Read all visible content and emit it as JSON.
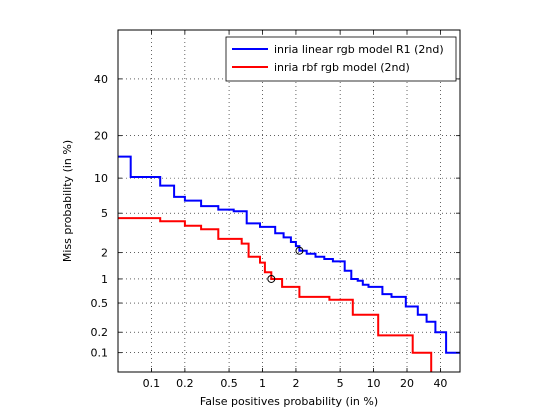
{
  "chart_data": {
    "type": "line",
    "xlabel": "False positives probability (in %)",
    "ylabel": "Miss probability (in %)",
    "x_scale": "log",
    "y_scale": "probit",
    "xlim": [
      0.05,
      60
    ],
    "ylim": [
      0.05,
      60
    ],
    "grid": true,
    "legend_position": "top-right",
    "x_ticks": [
      {
        "value": 0.1,
        "label": "0.1"
      },
      {
        "value": 0.2,
        "label": "0.2"
      },
      {
        "value": 0.5,
        "label": "0.5"
      },
      {
        "value": 1,
        "label": "1"
      },
      {
        "value": 2,
        "label": "2"
      },
      {
        "value": 5,
        "label": "5"
      },
      {
        "value": 10,
        "label": "10"
      },
      {
        "value": 20,
        "label": "20"
      },
      {
        "value": 40,
        "label": "40"
      }
    ],
    "y_ticks": [
      {
        "value": 0.1,
        "label": "0.1"
      },
      {
        "value": 0.2,
        "label": "0.2"
      },
      {
        "value": 0.5,
        "label": "0.5"
      },
      {
        "value": 1,
        "label": "1"
      },
      {
        "value": 2,
        "label": "2"
      },
      {
        "value": 5,
        "label": "5"
      },
      {
        "value": 10,
        "label": "10"
      },
      {
        "value": 20,
        "label": "20"
      },
      {
        "value": 40,
        "label": "40"
      }
    ],
    "series": [
      {
        "name": "inria linear rgb model R1 (2nd)",
        "color": "#0000ff",
        "marker_point": [
          2.15,
          2.1
        ],
        "points": [
          [
            0.05,
            14.5
          ],
          [
            0.065,
            14.5
          ],
          [
            0.065,
            10.2
          ],
          [
            0.09,
            10.2
          ],
          [
            0.09,
            10.2
          ],
          [
            0.12,
            10.2
          ],
          [
            0.12,
            8.7
          ],
          [
            0.16,
            8.7
          ],
          [
            0.16,
            7.0
          ],
          [
            0.2,
            7.0
          ],
          [
            0.2,
            6.5
          ],
          [
            0.28,
            6.5
          ],
          [
            0.28,
            5.8
          ],
          [
            0.4,
            5.8
          ],
          [
            0.4,
            5.4
          ],
          [
            0.55,
            5.4
          ],
          [
            0.55,
            5.2
          ],
          [
            0.72,
            5.2
          ],
          [
            0.72,
            4.0
          ],
          [
            0.95,
            4.0
          ],
          [
            0.95,
            3.7
          ],
          [
            1.3,
            3.7
          ],
          [
            1.3,
            3.2
          ],
          [
            1.55,
            3.2
          ],
          [
            1.55,
            2.9
          ],
          [
            1.8,
            2.9
          ],
          [
            1.8,
            2.6
          ],
          [
            2.0,
            2.6
          ],
          [
            2.0,
            2.35
          ],
          [
            2.15,
            2.35
          ],
          [
            2.15,
            2.1
          ],
          [
            2.5,
            2.1
          ],
          [
            2.5,
            1.95
          ],
          [
            3.0,
            1.95
          ],
          [
            3.0,
            1.8
          ],
          [
            3.6,
            1.8
          ],
          [
            3.6,
            1.7
          ],
          [
            4.3,
            1.7
          ],
          [
            4.3,
            1.6
          ],
          [
            5.5,
            1.6
          ],
          [
            5.5,
            1.25
          ],
          [
            6.3,
            1.25
          ],
          [
            6.3,
            1.0
          ],
          [
            7.2,
            1.0
          ],
          [
            7.2,
            0.95
          ],
          [
            8.0,
            0.95
          ],
          [
            8.0,
            0.85
          ],
          [
            9.0,
            0.85
          ],
          [
            9.0,
            0.8
          ],
          [
            12.0,
            0.8
          ],
          [
            12.0,
            0.65
          ],
          [
            14.5,
            0.65
          ],
          [
            14.5,
            0.6
          ],
          [
            19.5,
            0.6
          ],
          [
            19.5,
            0.45
          ],
          [
            25.0,
            0.45
          ],
          [
            25.0,
            0.35
          ],
          [
            30.0,
            0.35
          ],
          [
            30.0,
            0.28
          ],
          [
            36.0,
            0.28
          ],
          [
            36.0,
            0.2
          ],
          [
            45.0,
            0.2
          ],
          [
            45.0,
            0.1
          ],
          [
            60.0,
            0.1
          ]
        ]
      },
      {
        "name": "inria rbf rgb model (2nd)",
        "color": "#ff0000",
        "marker_point": [
          1.2,
          1.0
        ],
        "points": [
          [
            0.05,
            4.5
          ],
          [
            0.12,
            4.5
          ],
          [
            0.12,
            4.2
          ],
          [
            0.2,
            4.2
          ],
          [
            0.2,
            3.8
          ],
          [
            0.28,
            3.8
          ],
          [
            0.28,
            3.5
          ],
          [
            0.4,
            3.5
          ],
          [
            0.4,
            2.8
          ],
          [
            0.65,
            2.8
          ],
          [
            0.65,
            2.5
          ],
          [
            0.75,
            2.5
          ],
          [
            0.75,
            1.8
          ],
          [
            0.95,
            1.8
          ],
          [
            0.95,
            1.55
          ],
          [
            1.05,
            1.55
          ],
          [
            1.05,
            1.2
          ],
          [
            1.2,
            1.2
          ],
          [
            1.2,
            1.0
          ],
          [
            1.5,
            1.0
          ],
          [
            1.5,
            0.8
          ],
          [
            2.15,
            0.8
          ],
          [
            2.15,
            0.6
          ],
          [
            4.0,
            0.6
          ],
          [
            4.0,
            0.55
          ],
          [
            6.5,
            0.55
          ],
          [
            6.5,
            0.35
          ],
          [
            11.0,
            0.35
          ],
          [
            11.0,
            0.18
          ],
          [
            22.5,
            0.18
          ],
          [
            22.5,
            0.1
          ],
          [
            33.0,
            0.1
          ],
          [
            33.0,
            0.05
          ]
        ]
      }
    ]
  }
}
